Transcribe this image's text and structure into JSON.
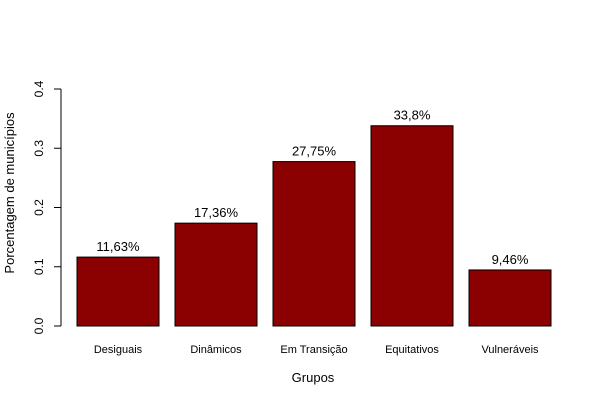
{
  "chart_data": {
    "type": "bar",
    "title": "",
    "xlabel": "Grupos",
    "ylabel": "Porcentagem de municípios",
    "ylim": [
      0,
      0.4
    ],
    "yticks": [
      0.0,
      0.1,
      0.2,
      0.3,
      0.4
    ],
    "ytick_labels": [
      "0.0",
      "0.1",
      "0.2",
      "0.3",
      "0.4"
    ],
    "categories": [
      "Desiguais",
      "Dinâmicos",
      "Em Transição",
      "Equitativos",
      "Vulneráveis"
    ],
    "values": [
      0.1163,
      0.1736,
      0.2775,
      0.338,
      0.0946
    ],
    "data_labels": [
      "11,63%",
      "17,36%",
      "27,75%",
      "33,8%",
      "9,46%"
    ],
    "bar_color": "#8B0000",
    "bar_edge_color": "#000000",
    "grid": false,
    "legend": false
  }
}
